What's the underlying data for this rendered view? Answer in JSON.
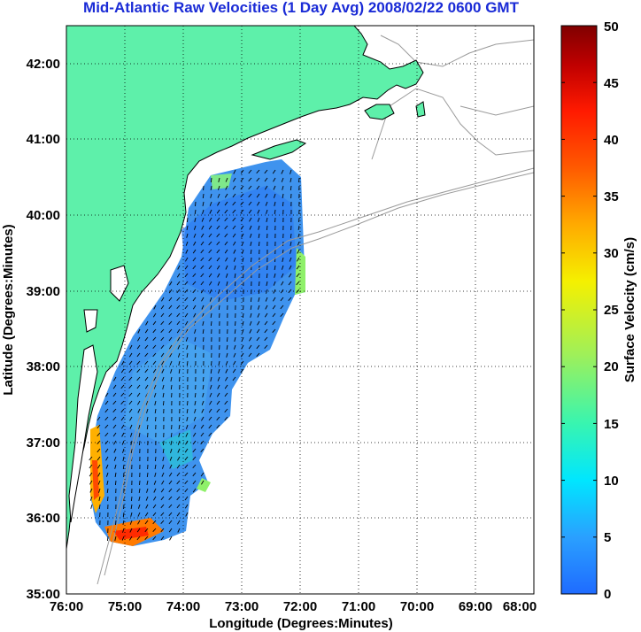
{
  "title": "Mid-Atlantic Raw Velocities (1 Day Avg) 2008/02/22 0600 GMT",
  "x_axis": {
    "label": "Longitude (Degrees:Minutes)",
    "ticks": [
      "76:00",
      "75:00",
      "74:00",
      "73:00",
      "72:00",
      "71:00",
      "70:00",
      "69:00",
      "68:00"
    ]
  },
  "y_axis": {
    "label": "Latitude (Degrees:Minutes)",
    "ticks": [
      "35:00",
      "36:00",
      "37:00",
      "38:00",
      "39:00",
      "40:00",
      "41:00",
      "42:00"
    ]
  },
  "colorbar": {
    "label": "Surface Velocity (cm/s)",
    "ticks": [
      "0",
      "5",
      "10",
      "15",
      "20",
      "25",
      "30",
      "35",
      "40",
      "45",
      "50"
    ],
    "range": [
      0,
      50
    ],
    "colors": [
      "#1f6bff",
      "#2aa0ff",
      "#00e6ff",
      "#38f5b0",
      "#9ef05a",
      "#f5f000",
      "#ffaa00",
      "#ff5a00",
      "#ff1a00",
      "#c00000",
      "#800000"
    ]
  },
  "map": {
    "lon_range": [
      -76,
      -68
    ],
    "lat_range": [
      35,
      42.5
    ],
    "land_color": "#5ef0aa",
    "ocean_color": "#ffffff",
    "grid": "dotted"
  }
}
